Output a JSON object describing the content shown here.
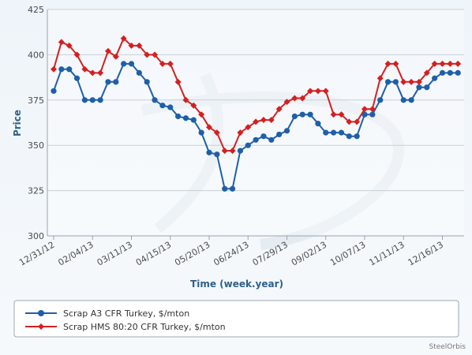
{
  "chart_data": {
    "type": "line",
    "xlabel": "Time (week.year)",
    "ylabel": "Price",
    "ylim": [
      300,
      425
    ],
    "yticks": [
      300,
      325,
      350,
      375,
      400,
      425
    ],
    "xtick_labels": [
      "12/31/12",
      "02/04/13",
      "03/11/13",
      "04/15/13",
      "05/20/13",
      "06/24/13",
      "07/29/13",
      "09/02/13",
      "10/07/13",
      "11/11/13",
      "12/16/13"
    ],
    "grid": true,
    "legend_position": "bottom",
    "credit": "SteelOrbis",
    "series": [
      {
        "name": "Scrap A3 CFR Turkey, $/mton",
        "color": "#1f5fa8",
        "values": [
          380,
          392,
          392,
          387,
          375,
          375,
          375,
          385,
          385,
          395,
          395,
          390,
          385,
          375,
          372,
          371,
          366,
          365,
          364,
          357,
          346,
          345,
          326,
          326,
          347,
          350,
          353,
          355,
          353,
          356,
          358,
          366,
          367,
          367,
          362,
          357,
          357,
          357,
          355,
          355,
          367,
          367,
          375,
          385,
          385,
          375,
          375,
          382,
          382,
          387,
          390,
          390,
          390
        ]
      },
      {
        "name": "Scrap HMS 80:20 CFR Turkey, $/mton",
        "color": "#d42020",
        "values": [
          392,
          407,
          405,
          400,
          392,
          390,
          390,
          402,
          399,
          409,
          405,
          405,
          400,
          400,
          395,
          395,
          385,
          375,
          372,
          367,
          360,
          357,
          347,
          347,
          357,
          360,
          363,
          364,
          364,
          370,
          374,
          376,
          376,
          380,
          380,
          380,
          367,
          367,
          363,
          363,
          370,
          370,
          387,
          395,
          395,
          385,
          385,
          385,
          390,
          395,
          395,
          395,
          395
        ]
      }
    ]
  }
}
